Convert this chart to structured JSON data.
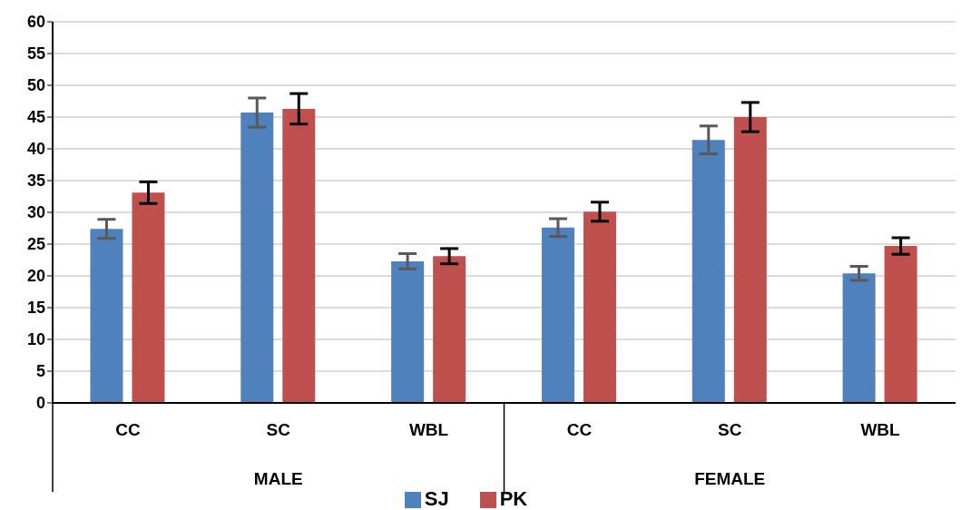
{
  "chart_data": {
    "type": "bar",
    "categories": [
      "CC",
      "SC",
      "WBL",
      "CC",
      "SC",
      "WBL"
    ],
    "annotations": [
      "MALE",
      "FEMALE"
    ],
    "series": [
      {
        "name": "SJ",
        "color": "#4f81bd",
        "values": [
          27.4,
          45.7,
          22.3,
          27.6,
          41.4,
          20.4
        ],
        "errors": [
          1.5,
          2.3,
          1.2,
          1.4,
          2.2,
          1.1
        ]
      },
      {
        "name": "PK",
        "color": "#c0504d",
        "values": [
          33.1,
          46.3,
          23.1,
          30.1,
          45.0,
          24.7
        ],
        "errors": [
          1.7,
          2.4,
          1.2,
          1.5,
          2.3,
          1.3
        ]
      }
    ],
    "ylim": [
      0,
      60
    ],
    "yticks": [
      0,
      5,
      10,
      15,
      20,
      25,
      30,
      35,
      40,
      45,
      50,
      55,
      60
    ],
    "grid": "y",
    "legend": "bottom"
  }
}
